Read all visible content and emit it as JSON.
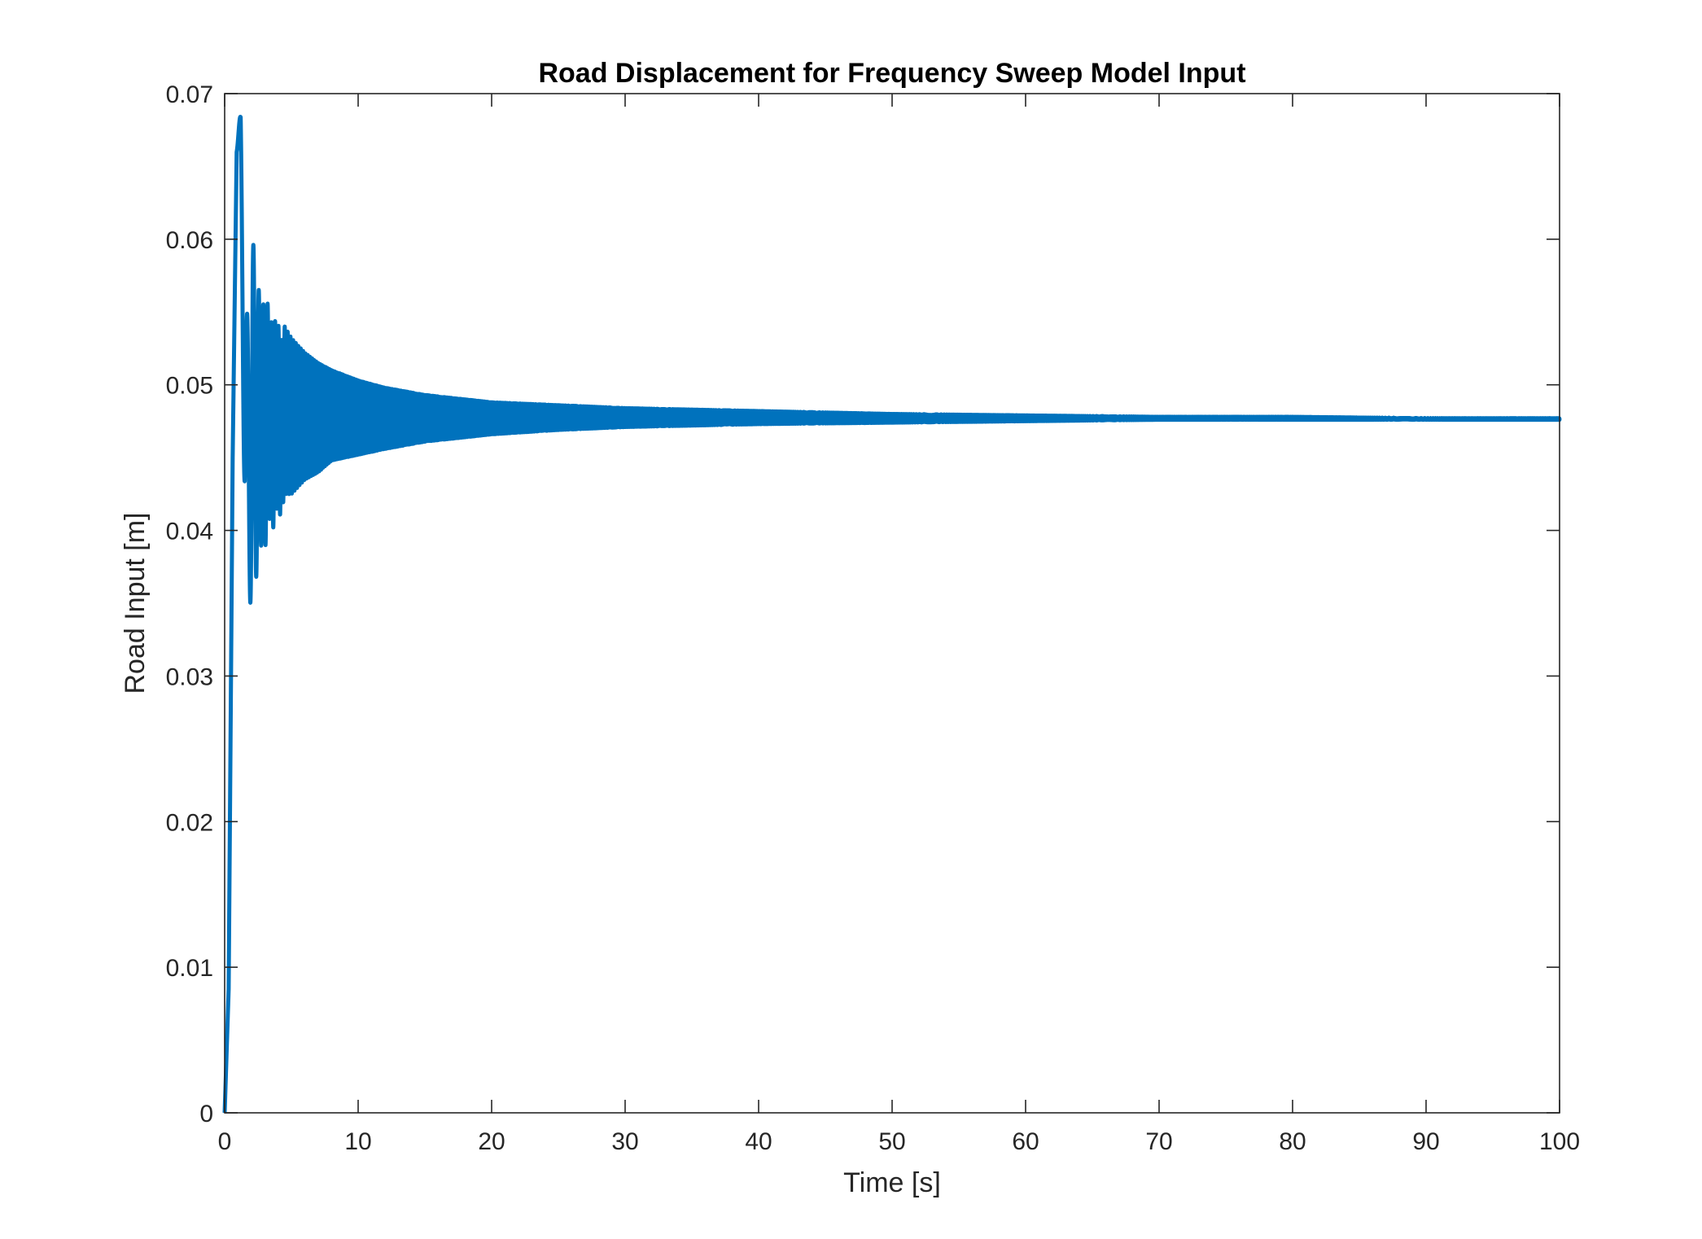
{
  "chart_data": {
    "type": "line",
    "title": "Road Displacement for Frequency Sweep Model Input",
    "xlabel": "Time [s]",
    "ylabel": "Road Input [m]",
    "xlim": [
      0,
      100
    ],
    "ylim": [
      0,
      0.07
    ],
    "x_ticks": [
      "0",
      "10",
      "20",
      "30",
      "40",
      "50",
      "60",
      "70",
      "80",
      "90",
      "100"
    ],
    "y_ticks": [
      "0",
      "0.01",
      "0.02",
      "0.03",
      "0.04",
      "0.05",
      "0.06",
      "0.07"
    ],
    "grid": false,
    "line_color": "#0072BD",
    "series": [
      {
        "name": "",
        "x": [
          0,
          0.3,
          0.6,
          0.9,
          1.2,
          1.5,
          1.8,
          2.1,
          2.4,
          2.7,
          3.0,
          3.3,
          3.6,
          3.9,
          4.2,
          4.5,
          5,
          6,
          7,
          8,
          10,
          12,
          15,
          20,
          25,
          30,
          40,
          50,
          60,
          70,
          80,
          90,
          100
        ],
        "upper": [
          0,
          0.0085,
          0.045,
          0.066,
          0.069,
          0.058,
          0.053,
          0.0605,
          0.0555,
          0.0575,
          0.0545,
          0.056,
          0.0535,
          0.055,
          0.0528,
          0.054,
          0.0532,
          0.0522,
          0.0515,
          0.051,
          0.0503,
          0.0498,
          0.0493,
          0.0488,
          0.0486,
          0.0484,
          0.0482,
          0.048,
          0.0479,
          0.0478,
          0.0478,
          0.0477,
          0.0477
        ],
        "lower": [
          0,
          0.0085,
          0.045,
          0.066,
          0.066,
          0.04,
          0.032,
          0.039,
          0.0365,
          0.039,
          0.0385,
          0.041,
          0.04,
          0.0415,
          0.041,
          0.0425,
          0.0425,
          0.0435,
          0.044,
          0.0448,
          0.0452,
          0.0456,
          0.0461,
          0.0466,
          0.0469,
          0.0471,
          0.0473,
          0.0474,
          0.0475,
          0.0476,
          0.0476,
          0.0476,
          0.0476
        ]
      }
    ]
  }
}
